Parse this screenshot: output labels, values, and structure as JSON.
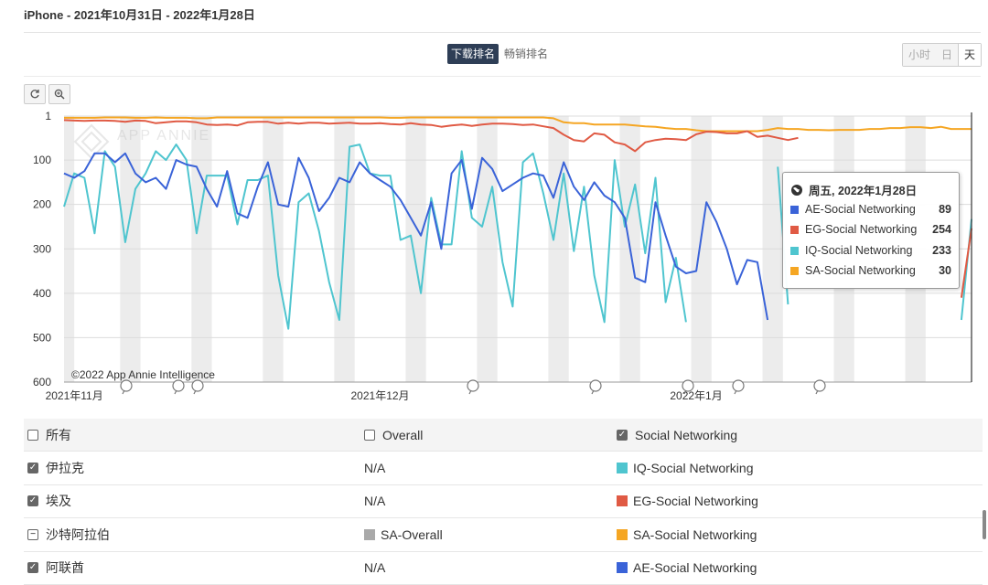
{
  "header": {
    "title": "iPhone - 2021年10月31日 - 2022年1月28日"
  },
  "rank_tabs": [
    {
      "label": "下载排名",
      "active": true
    },
    {
      "label": "畅销排名",
      "active": false
    }
  ],
  "granularity": [
    {
      "label": "小时",
      "active": false
    },
    {
      "label": "日",
      "active": false
    },
    {
      "label": "天",
      "active": true
    }
  ],
  "toolbar": {
    "reset_icon": "reset-icon",
    "zoom_icon": "zoom-in-icon"
  },
  "watermark": "APP ANNIE",
  "copyright": "©2022 App Annie Intelligence",
  "tooltip": {
    "date": "周五, 2022年1月28日",
    "rows": [
      {
        "label": "AE-Social Networking",
        "value": "89",
        "color": "#3a63d8"
      },
      {
        "label": "EG-Social Networking",
        "value": "254",
        "color": "#e05a44"
      },
      {
        "label": "IQ-Social Networking",
        "value": "233",
        "color": "#4fc5cf"
      },
      {
        "label": "SA-Social Networking",
        "value": "30",
        "color": "#f5a623"
      }
    ]
  },
  "legend_table": {
    "header": {
      "all": "所有",
      "overall": "Overall",
      "social": "Social Networking"
    },
    "rows": [
      {
        "country": "伊拉克",
        "state": "checked",
        "overall": "N/A",
        "social": "IQ-Social Networking",
        "social_color": "#4fc5cf"
      },
      {
        "country": "埃及",
        "state": "checked",
        "overall": "N/A",
        "social": "EG-Social Networking",
        "social_color": "#e05a44"
      },
      {
        "country": "沙特阿拉伯",
        "state": "partial",
        "overall": "SA-Overall",
        "overall_color": "#a9a9a9",
        "social": "SA-Social Networking",
        "social_color": "#f5a623"
      },
      {
        "country": "阿联酋",
        "state": "checked",
        "overall": "N/A",
        "social": "AE-Social Networking",
        "social_color": "#3a63d8"
      }
    ]
  },
  "chart_data": {
    "type": "line",
    "y_reversed": true,
    "ylim": [
      1,
      600
    ],
    "yticks": [
      "1",
      "100",
      "200",
      "300",
      "400",
      "500",
      "600"
    ],
    "x_labels": [
      "2021年11月",
      "2021年12月",
      "2022年1月"
    ],
    "x_start": "2021-10-31",
    "days": 90,
    "series": [
      {
        "name": "AE-Social Networking",
        "color": "#3a63d8",
        "values": [
          130,
          140,
          125,
          85,
          85,
          105,
          85,
          130,
          150,
          140,
          165,
          100,
          110,
          115,
          165,
          205,
          125,
          220,
          230,
          160,
          105,
          200,
          205,
          95,
          140,
          215,
          185,
          140,
          150,
          105,
          130,
          145,
          160,
          190,
          230,
          270,
          195,
          300,
          130,
          100,
          210,
          95,
          120,
          170,
          155,
          140,
          130,
          135,
          185,
          105,
          160,
          190,
          150,
          180,
          195,
          230,
          365,
          375,
          195,
          270,
          340,
          355,
          350,
          195,
          240,
          300,
          380,
          325,
          330,
          460,
          null,
          null,
          null,
          null,
          null,
          null,
          null,
          null,
          null,
          null,
          460,
          null,
          null,
          null,
          null,
          null,
          null,
          null,
          null,
          89
        ]
      },
      {
        "name": "EG-Social Networking",
        "color": "#e05a44",
        "values": [
          10,
          11,
          12,
          11,
          11,
          12,
          14,
          11,
          12,
          17,
          15,
          13,
          13,
          15,
          20,
          21,
          20,
          22,
          15,
          14,
          14,
          18,
          16,
          18,
          16,
          16,
          18,
          17,
          16,
          18,
          18,
          17,
          19,
          20,
          17,
          20,
          21,
          25,
          22,
          20,
          23,
          20,
          18,
          18,
          19,
          21,
          20,
          24,
          28,
          43,
          55,
          58,
          40,
          43,
          60,
          65,
          80,
          60,
          55,
          52,
          53,
          55,
          42,
          36,
          37,
          40,
          40,
          35,
          48,
          45,
          50,
          55,
          50,
          null,
          null,
          null,
          null,
          null,
          null,
          null,
          null,
          null,
          null,
          null,
          null,
          null,
          null,
          null,
          410,
          254
        ]
      },
      {
        "name": "IQ-Social Networking",
        "color": "#4fc5cf",
        "values": [
          205,
          130,
          140,
          265,
          80,
          115,
          285,
          165,
          130,
          80,
          100,
          65,
          100,
          265,
          135,
          135,
          135,
          245,
          145,
          145,
          135,
          360,
          480,
          195,
          175,
          260,
          375,
          460,
          70,
          65,
          130,
          135,
          135,
          280,
          270,
          400,
          185,
          290,
          290,
          80,
          230,
          250,
          160,
          330,
          430,
          105,
          85,
          175,
          280,
          130,
          305,
          160,
          360,
          465,
          100,
          250,
          155,
          310,
          140,
          420,
          320,
          465,
          null,
          null,
          null,
          460,
          null,
          null,
          null,
          null,
          115,
          425,
          null,
          null,
          null,
          null,
          null,
          null,
          null,
          null,
          null,
          null,
          null,
          null,
          null,
          null,
          null,
          null,
          460,
          233
        ]
      },
      {
        "name": "SA-Social Networking",
        "color": "#f5a623",
        "values": [
          5,
          5,
          5,
          5,
          4,
          4,
          4,
          5,
          5,
          4,
          5,
          5,
          5,
          6,
          6,
          4,
          4,
          4,
          4,
          4,
          4,
          4,
          4,
          4,
          4,
          4,
          4,
          4,
          4,
          4,
          4,
          4,
          5,
          5,
          4,
          4,
          4,
          4,
          4,
          4,
          4,
          4,
          4,
          4,
          4,
          4,
          4,
          4,
          6,
          15,
          17,
          17,
          20,
          20,
          20,
          20,
          22,
          24,
          25,
          28,
          30,
          30,
          33,
          35,
          35,
          35,
          35,
          35,
          35,
          32,
          28,
          30,
          30,
          32,
          32,
          33,
          32,
          32,
          32,
          30,
          30,
          28,
          28,
          26,
          26,
          28,
          25,
          30,
          30,
          30
        ]
      }
    ]
  }
}
